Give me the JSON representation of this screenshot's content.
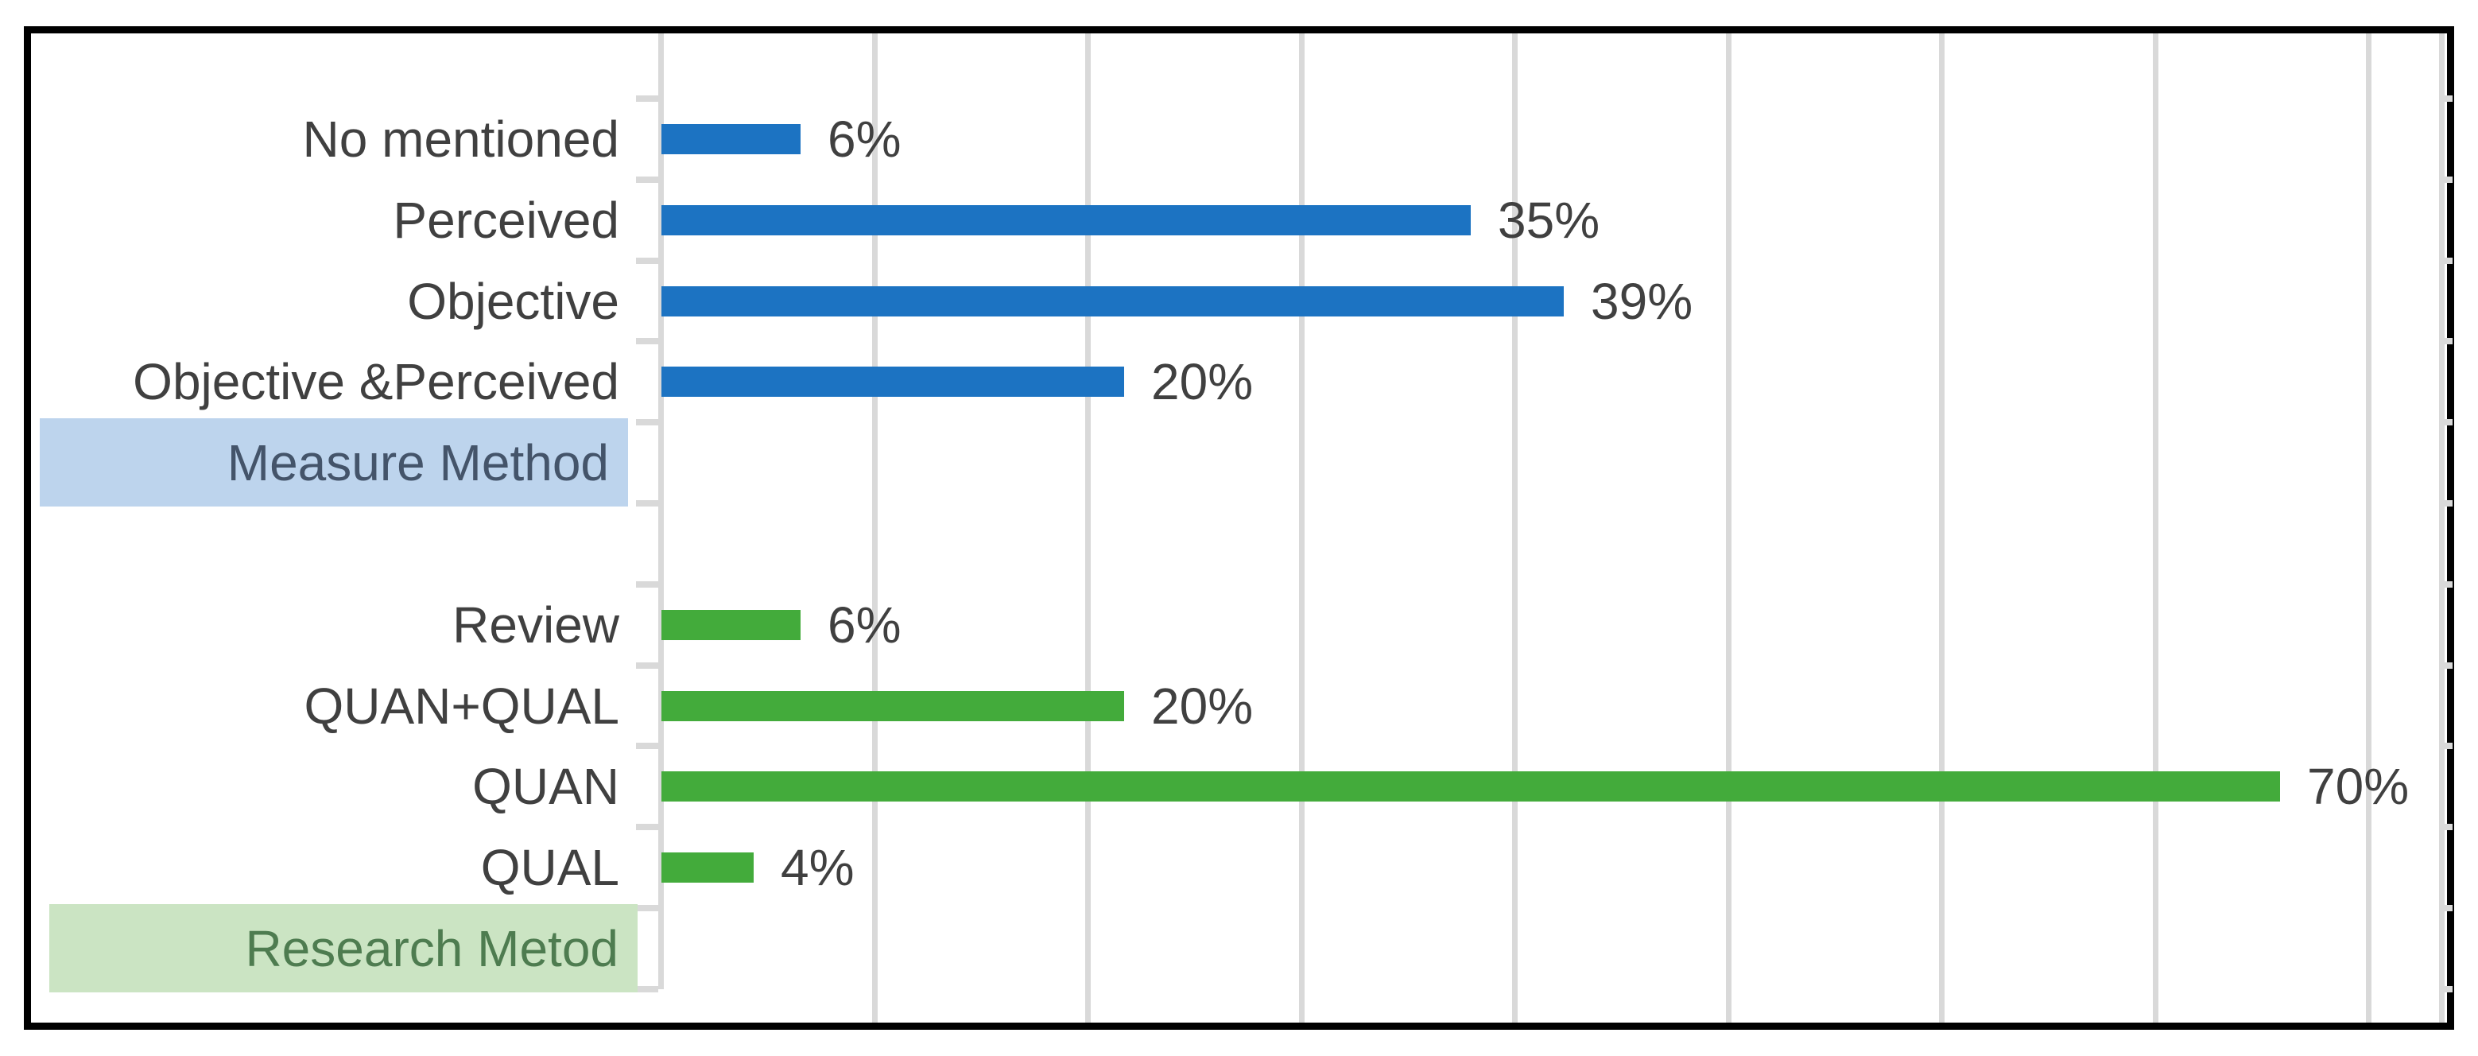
{
  "chart_data": {
    "type": "bar",
    "orientation": "horizontal",
    "title": "",
    "xlabel": "",
    "ylabel": "",
    "xlim": [
      0,
      77
    ],
    "grid": true,
    "gridline_count": 8,
    "legend": "none",
    "value_suffix": "%",
    "series": [
      {
        "name": "Measure Method",
        "color": "#1C73C2",
        "label_highlight_bg": "#BDD4ED",
        "label_text_color": "#44546A",
        "categories": [
          "No mentioned",
          "Perceived",
          "Objective",
          "Objective &Perceived"
        ],
        "values": [
          6,
          35,
          39,
          20
        ],
        "data_labels": [
          "6%",
          "35%",
          "39%",
          "20%"
        ]
      },
      {
        "name": "Research Metod",
        "color": "#43AB3B",
        "label_highlight_bg": "#CBE4C3",
        "label_text_color": "#4E7C50",
        "categories": [
          "Review",
          "QUAN+QUAL",
          "QUAN",
          "QUAL"
        ],
        "values": [
          6,
          20,
          70,
          4
        ],
        "data_labels": [
          "6%",
          "20%",
          "70%",
          "4%"
        ]
      }
    ]
  },
  "colors": {
    "grid": "#D9D9D9",
    "axis": "#D9D9D9",
    "label_text": "#404040",
    "frame_border": "#000000",
    "background": "#FFFFFF"
  }
}
